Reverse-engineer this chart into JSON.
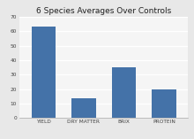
{
  "title": "6 Species Averages Over Controls",
  "categories": [
    "YIELD",
    "DRY MATTER",
    "BRIX",
    "PROTEIN"
  ],
  "values": [
    63,
    14,
    35,
    20
  ],
  "bar_color": "#4472a8",
  "ylim": [
    0,
    70
  ],
  "yticks": [
    0,
    10,
    20,
    30,
    40,
    50,
    60,
    70
  ],
  "figure_bg": "#e8e8e8",
  "plot_bg": "#f5f5f5",
  "grid_color": "#ffffff",
  "title_fontsize": 6.5,
  "tick_fontsize": 4.2,
  "bar_width": 0.6,
  "spine_color": "#aaaaaa"
}
